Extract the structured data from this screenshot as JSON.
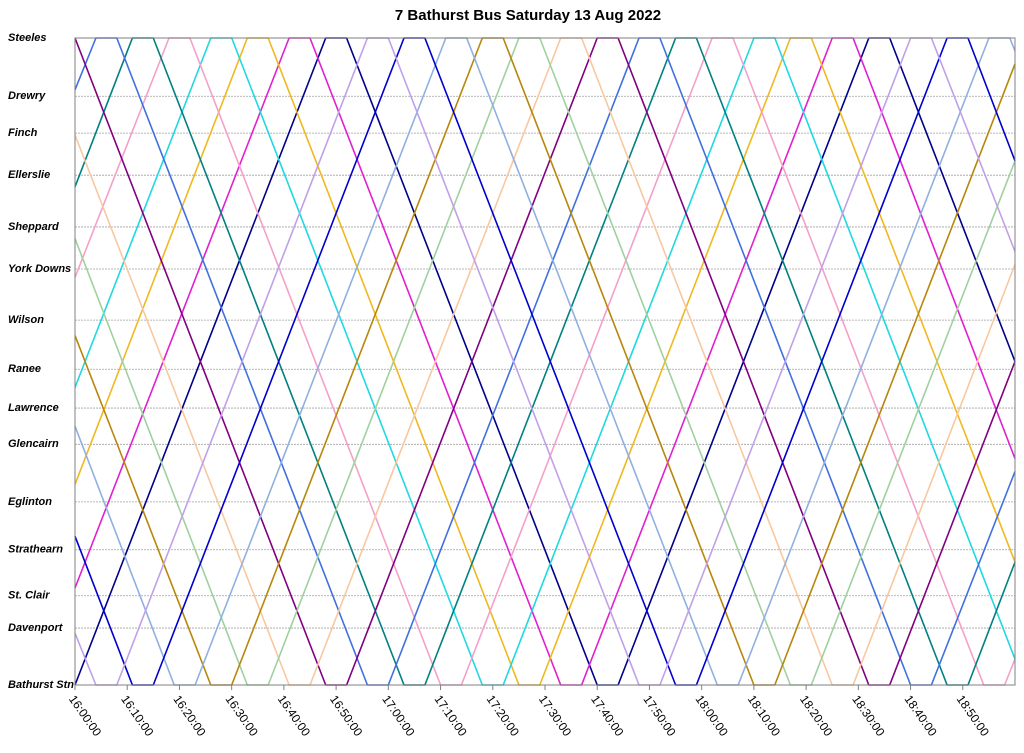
{
  "chart_data": {
    "type": "line",
    "title": "7 Bathurst Bus Saturday 13 Aug 2022",
    "xlim": [
      960,
      1140
    ],
    "xticks": [
      {
        "value": 960,
        "label": "16:00:00"
      },
      {
        "value": 970,
        "label": "16:10:00"
      },
      {
        "value": 980,
        "label": "16:20:00"
      },
      {
        "value": 990,
        "label": "16:30:00"
      },
      {
        "value": 1000,
        "label": "16:40:00"
      },
      {
        "value": 1010,
        "label": "16:50:00"
      },
      {
        "value": 1020,
        "label": "17:00:00"
      },
      {
        "value": 1030,
        "label": "17:10:00"
      },
      {
        "value": 1040,
        "label": "17:20:00"
      },
      {
        "value": 1050,
        "label": "17:30:00"
      },
      {
        "value": 1060,
        "label": "17:40:00"
      },
      {
        "value": 1070,
        "label": "17:50:00"
      },
      {
        "value": 1080,
        "label": "18:00:00"
      },
      {
        "value": 1090,
        "label": "18:10:00"
      },
      {
        "value": 1100,
        "label": "18:20:00"
      },
      {
        "value": 1110,
        "label": "18:30:00"
      },
      {
        "value": 1120,
        "label": "18:40:00"
      },
      {
        "value": 1130,
        "label": "18:50:00"
      }
    ],
    "ylim": [
      0,
      100
    ],
    "yticks": [
      {
        "value": 100,
        "label": "Steeles"
      },
      {
        "value": 91.0,
        "label": "Drewry"
      },
      {
        "value": 85.3,
        "label": "Finch"
      },
      {
        "value": 78.8,
        "label": "Ellerslie"
      },
      {
        "value": 70.8,
        "label": "Sheppard"
      },
      {
        "value": 64.3,
        "label": "York Downs"
      },
      {
        "value": 56.4,
        "label": "Wilson"
      },
      {
        "value": 48.8,
        "label": "Ranee"
      },
      {
        "value": 42.8,
        "label": "Lawrence"
      },
      {
        "value": 37.2,
        "label": "Glencairn"
      },
      {
        "value": 28.3,
        "label": "Eglinton"
      },
      {
        "value": 20.9,
        "label": "Strathearn"
      },
      {
        "value": 13.8,
        "label": "St. Clair"
      },
      {
        "value": 8.8,
        "label": "Davenport"
      },
      {
        "value": 0,
        "label": "Bathurst Stn"
      }
    ],
    "grid": true,
    "series": [
      {
        "color": "#00008b",
        "x": [
          960,
          1008,
          1012,
          1060,
          1064,
          1112,
          1116,
          1140
        ],
        "values": [
          0,
          100,
          100,
          0,
          0,
          100,
          100,
          50
        ]
      },
      {
        "color": "#e020d0",
        "x": [
          960,
          1001,
          1005,
          1053,
          1057,
          1105,
          1109,
          1140
        ],
        "values": [
          15,
          100,
          100,
          0,
          0,
          100,
          100,
          35
        ]
      },
      {
        "color": "#f0b820",
        "x": [
          960,
          993,
          997,
          1045,
          1049,
          1097,
          1101,
          1140
        ],
        "values": [
          31,
          100,
          100,
          0,
          0,
          100,
          100,
          19
        ]
      },
      {
        "color": "#20d8e0",
        "x": [
          960,
          986,
          990,
          1038,
          1042,
          1090,
          1094,
          1140
        ],
        "values": [
          46,
          100,
          100,
          0,
          0,
          100,
          100,
          4
        ]
      },
      {
        "color": "#f4a0c8",
        "x": [
          960,
          978,
          982,
          1030,
          1034,
          1082,
          1086,
          1134,
          1138,
          1140
        ],
        "values": [
          63,
          100,
          100,
          0,
          0,
          100,
          100,
          0,
          0,
          4
        ]
      },
      {
        "color": "#008080",
        "x": [
          960,
          971,
          975,
          1023,
          1027,
          1075,
          1079,
          1127,
          1131,
          1140
        ],
        "values": [
          77,
          100,
          100,
          0,
          0,
          100,
          100,
          0,
          0,
          19
        ]
      },
      {
        "color": "#4070e0",
        "x": [
          960,
          964,
          968,
          1016,
          1020,
          1068,
          1072,
          1120,
          1124,
          1140
        ],
        "values": [
          92,
          100,
          100,
          0,
          0,
          100,
          100,
          0,
          0,
          33
        ]
      },
      {
        "color": "#800080",
        "x": [
          960,
          1008,
          1012,
          1060,
          1064,
          1112,
          1116,
          1140
        ],
        "values": [
          100,
          0,
          0,
          100,
          100,
          0,
          0,
          50
        ]
      },
      {
        "color": "#f8c8a0",
        "x": [
          960,
          1001,
          1005,
          1053,
          1057,
          1105,
          1109,
          1140
        ],
        "values": [
          85,
          0,
          0,
          100,
          100,
          0,
          0,
          65
        ]
      },
      {
        "color": "#a0d0a0",
        "x": [
          960,
          993,
          997,
          1045,
          1049,
          1097,
          1101,
          1140
        ],
        "values": [
          69,
          0,
          0,
          100,
          100,
          0,
          0,
          81
        ]
      },
      {
        "color": "#b8860b",
        "x": [
          960,
          986,
          990,
          1038,
          1042,
          1090,
          1094,
          1140
        ],
        "values": [
          54,
          0,
          0,
          100,
          100,
          0,
          0,
          96
        ]
      },
      {
        "color": "#90b0e0",
        "x": [
          960,
          979,
          983,
          1031,
          1035,
          1083,
          1087,
          1135,
          1139,
          1140
        ],
        "values": [
          40,
          0,
          0,
          100,
          100,
          0,
          0,
          100,
          100,
          98
        ]
      },
      {
        "color": "#0000cd",
        "x": [
          960,
          971,
          975,
          1023,
          1027,
          1075,
          1079,
          1127,
          1131,
          1140
        ],
        "values": [
          23,
          0,
          0,
          100,
          100,
          0,
          0,
          100,
          100,
          81
        ]
      },
      {
        "color": "#c0a0e8",
        "x": [
          960,
          964,
          968,
          1016,
          1020,
          1068,
          1072,
          1120,
          1124,
          1140
        ],
        "values": [
          8,
          0,
          0,
          100,
          100,
          0,
          0,
          100,
          100,
          67
        ]
      }
    ]
  }
}
